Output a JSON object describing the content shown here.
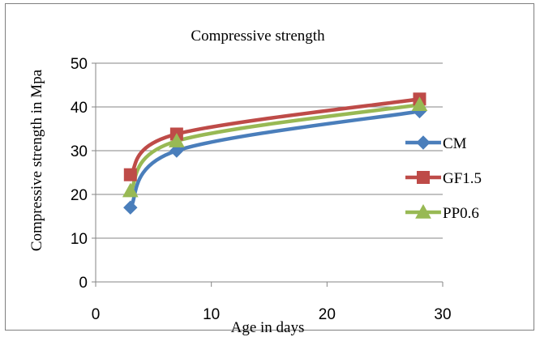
{
  "chart_data": {
    "type": "line",
    "title": "Compressive strength",
    "xlabel": "Age in days",
    "ylabel": "Compressive strength in Mpa",
    "xlim": [
      0,
      30
    ],
    "ylim": [
      0,
      50
    ],
    "xticks": [
      0,
      10,
      20,
      30
    ],
    "yticks": [
      0,
      10,
      20,
      30,
      40,
      50
    ],
    "grid": "horizontal",
    "legend_position": "right",
    "x": [
      3,
      7,
      28
    ],
    "series": [
      {
        "name": "CM",
        "values": [
          17,
          30,
          39
        ],
        "color": "#4a7ebb",
        "marker": "diamond"
      },
      {
        "name": "GF1.5",
        "values": [
          24.5,
          33.8,
          41.8
        ],
        "color": "#be4b48",
        "marker": "square"
      },
      {
        "name": "PP0.6",
        "values": [
          20.8,
          32.2,
          40.5
        ],
        "color": "#98b954",
        "marker": "triangle"
      }
    ]
  }
}
